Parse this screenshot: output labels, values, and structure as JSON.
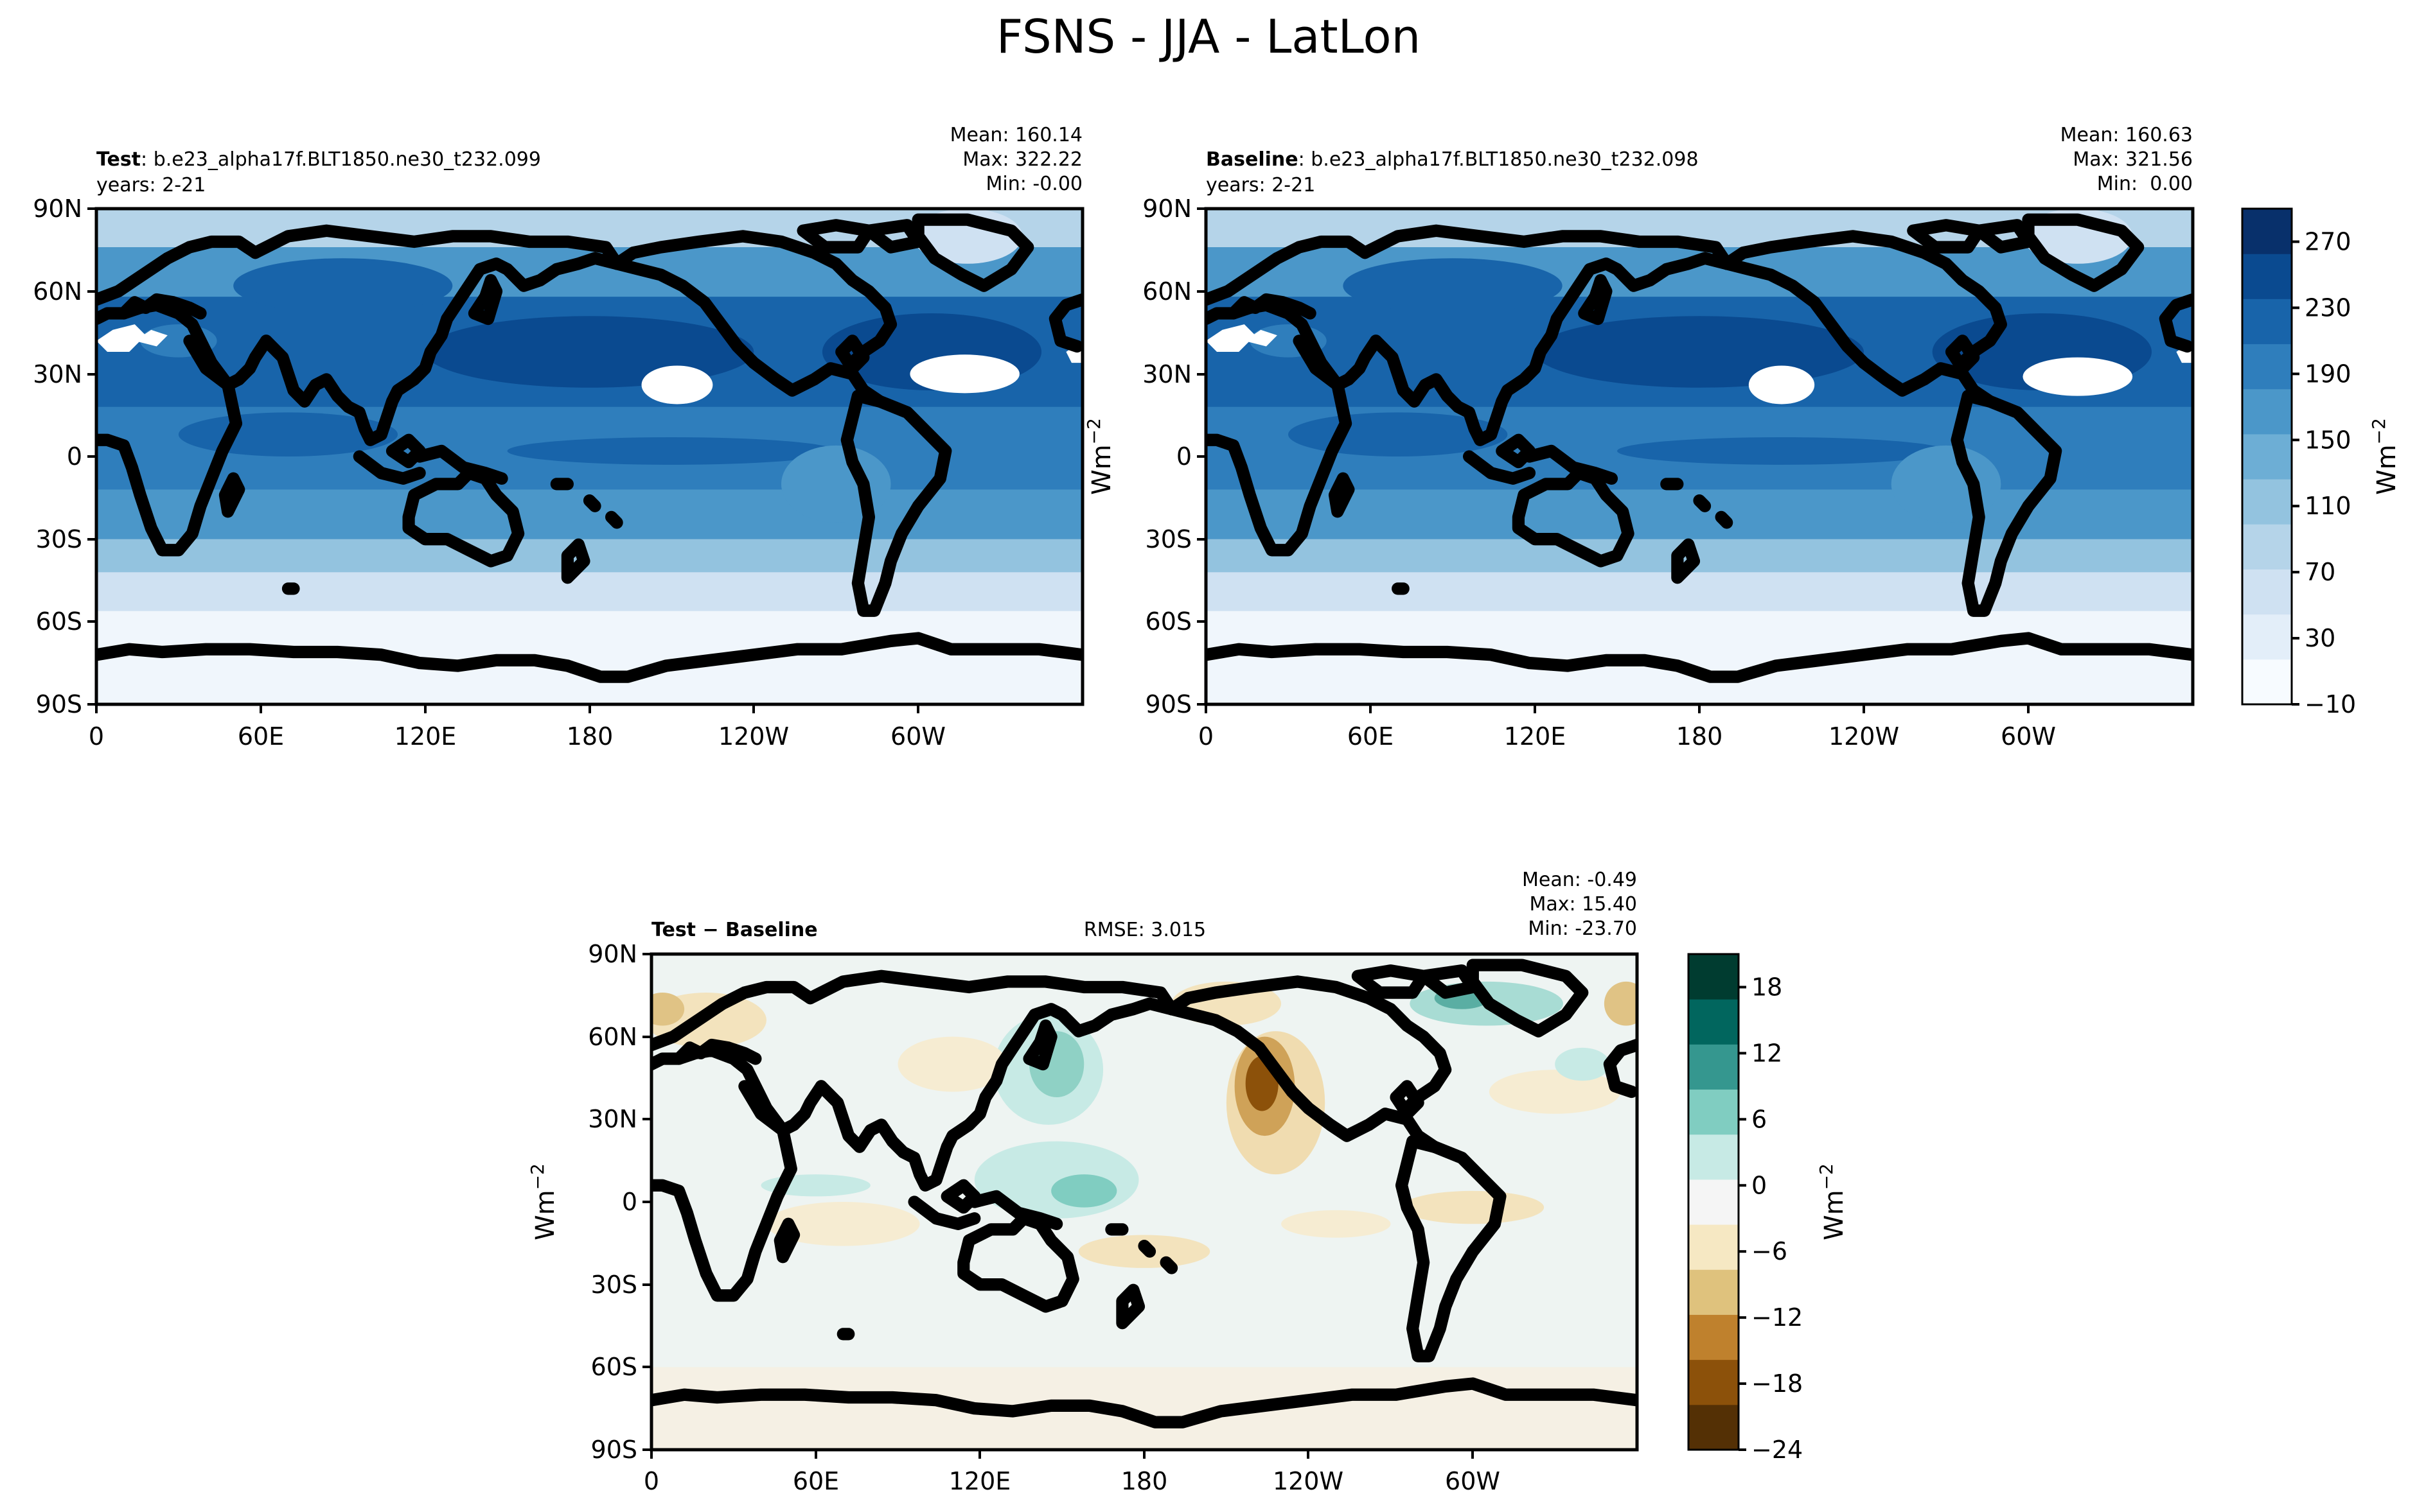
{
  "figure": {
    "title": "FSNS - JJA - LatLon"
  },
  "chart_data": [
    {
      "type": "heatmap",
      "panel": "test",
      "name_label": "Test",
      "name_sep": ":",
      "case_name": "b.e23_alpha17f.BLT1850.ne30_t232.099",
      "years": "years: 2-21",
      "stats": [
        "Mean: 160.14",
        "Max: 322.22",
        "Min: -0.00"
      ],
      "xlabel": "",
      "ylabel": "",
      "x_ticks": [
        "0",
        "60E",
        "120E",
        "180",
        "120W",
        "60W"
      ],
      "y_ticks": [
        "90N",
        "60N",
        "30N",
        "0",
        "30S",
        "60S",
        "90S"
      ],
      "xlim": [
        0,
        360
      ],
      "ylim": [
        -90,
        90
      ]
    },
    {
      "type": "heatmap",
      "panel": "baseline",
      "name_label": "Baseline",
      "name_sep": ":",
      "case_name": "b.e23_alpha17f.BLT1850.ne30_t232.098",
      "years": "years: 2-21",
      "stats": [
        "Mean: 160.63",
        "Max: 321.56",
        "Min:  0.00"
      ],
      "xlabel": "",
      "ylabel": "",
      "x_ticks": [
        "0",
        "60E",
        "120E",
        "180",
        "120W",
        "60W"
      ],
      "y_ticks": [
        "90N",
        "60N",
        "30N",
        "0",
        "30S",
        "60S",
        "90S"
      ],
      "xlim": [
        0,
        360
      ],
      "ylim": [
        -90,
        90
      ],
      "colorbar": {
        "label": "Wm",
        "label_exp": "−2",
        "ticks": [
          "270",
          "230",
          "190",
          "150",
          "110",
          "70",
          "30",
          "−10"
        ],
        "range": [
          -10,
          290
        ],
        "colors": [
          "#f7fbff",
          "#e3eef9",
          "#cfe1f2",
          "#b5d4e9",
          "#93c3df",
          "#6daed5",
          "#4b97c9",
          "#2f7ebc",
          "#1864aa",
          "#0a4a90",
          "#08306b"
        ]
      }
    },
    {
      "type": "heatmap",
      "panel": "difference",
      "name_label": "Test − Baseline",
      "rmse": "RMSE: 3.015",
      "stats": [
        "Mean: -0.49",
        "Max: 15.40",
        "Min: -23.70"
      ],
      "xlabel": "",
      "ylabel": "Wm",
      "ylabel_exp": "−2",
      "x_ticks": [
        "0",
        "60E",
        "120E",
        "180",
        "120W",
        "60W"
      ],
      "y_ticks": [
        "90N",
        "60N",
        "30N",
        "0",
        "30S",
        "60S",
        "90S"
      ],
      "xlim": [
        0,
        360
      ],
      "ylim": [
        -90,
        90
      ],
      "colorbar": {
        "label": "Wm",
        "label_exp": "−2",
        "ticks": [
          "18",
          "12",
          "6",
          "0",
          "−6",
          "−12",
          "−18",
          "−24"
        ],
        "range": [
          -24,
          21
        ],
        "colors": [
          "#543005",
          "#8c510a",
          "#bf812d",
          "#dfc27d",
          "#f6e8c3",
          "#f5f5f5",
          "#c7eae5",
          "#80cdc1",
          "#35978f",
          "#01665e",
          "#003c30"
        ]
      }
    }
  ]
}
